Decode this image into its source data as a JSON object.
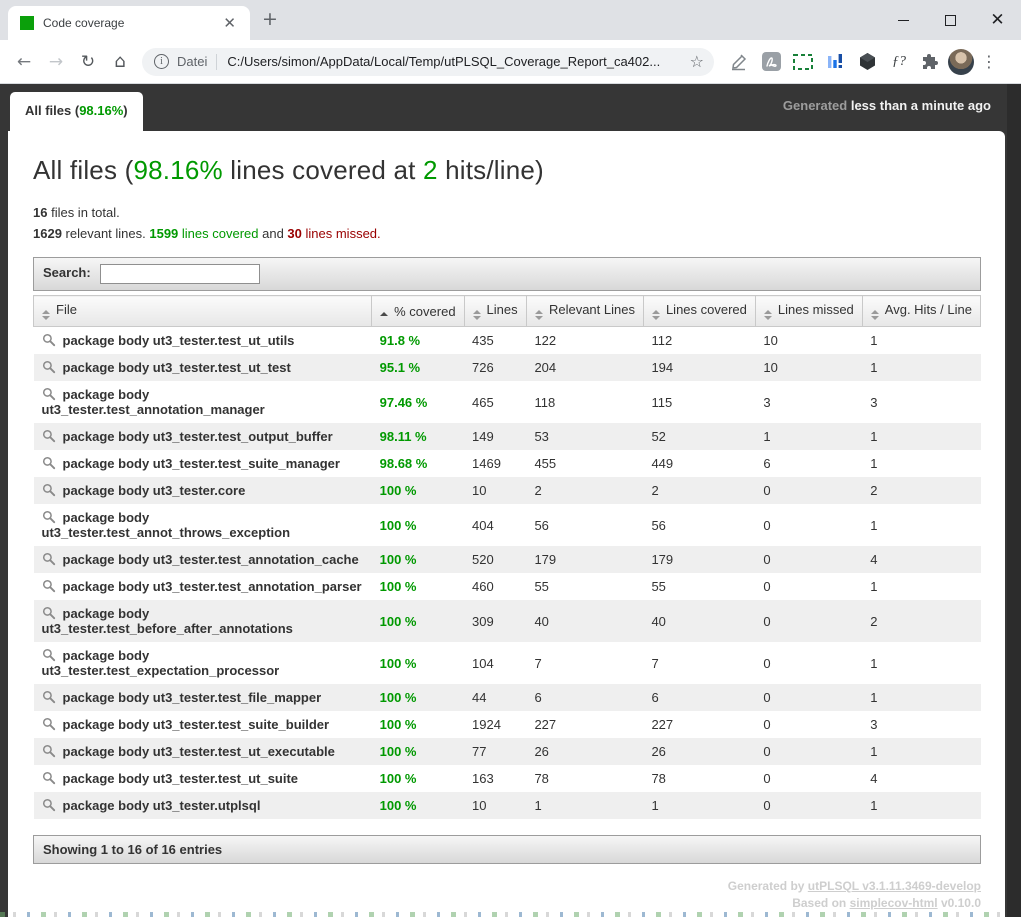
{
  "browser": {
    "tab": {
      "title": "Code coverage"
    },
    "toolbar": {
      "protocol_label": "Datei",
      "url": "C:/Users/simon/AppData/Local/Temp/utPLSQL_Coverage_Report_ca402..."
    }
  },
  "report": {
    "tab": {
      "prefix": "All files (",
      "percent": "98.16%",
      "suffix": ")"
    },
    "generated": {
      "label": "Generated",
      "time": "less than a minute ago"
    },
    "heading": {
      "pre": "All files (",
      "percent": "98.16%",
      "mid": " lines covered at ",
      "hits": "2",
      "post": " hits/line)"
    },
    "stats": {
      "files_count": "16",
      "files_label": " files in total.",
      "relevant_count": "1629",
      "relevant_label": " relevant lines. ",
      "covered_count": "1599",
      "covered_label": " lines covered",
      "conjunction": " and ",
      "missed_count": "30",
      "missed_label": " lines missed."
    },
    "search": {
      "label": "Search:"
    },
    "table": {
      "columns": [
        {
          "label": "File",
          "sort": "both"
        },
        {
          "label": "% covered",
          "sort": "asc"
        },
        {
          "label": "Lines",
          "sort": "both"
        },
        {
          "label": "Relevant Lines",
          "sort": "both"
        },
        {
          "label": "Lines covered",
          "sort": "both"
        },
        {
          "label": "Lines missed",
          "sort": "both"
        },
        {
          "label": "Avg. Hits / Line",
          "sort": "both"
        }
      ],
      "rows": [
        {
          "file": "package body ut3_tester.test_ut_utils",
          "covered": "91.8 %",
          "lines": "435",
          "relevant": "122",
          "lines_covered": "112",
          "lines_missed": "10",
          "avg_hits": "1"
        },
        {
          "file": "package body ut3_tester.test_ut_test",
          "covered": "95.1 %",
          "lines": "726",
          "relevant": "204",
          "lines_covered": "194",
          "lines_missed": "10",
          "avg_hits": "1"
        },
        {
          "file": "package body ut3_tester.test_annotation_manager",
          "covered": "97.46 %",
          "lines": "465",
          "relevant": "118",
          "lines_covered": "115",
          "lines_missed": "3",
          "avg_hits": "3"
        },
        {
          "file": "package body ut3_tester.test_output_buffer",
          "covered": "98.11 %",
          "lines": "149",
          "relevant": "53",
          "lines_covered": "52",
          "lines_missed": "1",
          "avg_hits": "1"
        },
        {
          "file": "package body ut3_tester.test_suite_manager",
          "covered": "98.68 %",
          "lines": "1469",
          "relevant": "455",
          "lines_covered": "449",
          "lines_missed": "6",
          "avg_hits": "1"
        },
        {
          "file": "package body ut3_tester.core",
          "covered": "100 %",
          "lines": "10",
          "relevant": "2",
          "lines_covered": "2",
          "lines_missed": "0",
          "avg_hits": "2"
        },
        {
          "file": "package body ut3_tester.test_annot_throws_exception",
          "covered": "100 %",
          "lines": "404",
          "relevant": "56",
          "lines_covered": "56",
          "lines_missed": "0",
          "avg_hits": "1"
        },
        {
          "file": "package body ut3_tester.test_annotation_cache",
          "covered": "100 %",
          "lines": "520",
          "relevant": "179",
          "lines_covered": "179",
          "lines_missed": "0",
          "avg_hits": "4"
        },
        {
          "file": "package body ut3_tester.test_annotation_parser",
          "covered": "100 %",
          "lines": "460",
          "relevant": "55",
          "lines_covered": "55",
          "lines_missed": "0",
          "avg_hits": "1"
        },
        {
          "file": "package body ut3_tester.test_before_after_annotations",
          "covered": "100 %",
          "lines": "309",
          "relevant": "40",
          "lines_covered": "40",
          "lines_missed": "0",
          "avg_hits": "2"
        },
        {
          "file": "package body ut3_tester.test_expectation_processor",
          "covered": "100 %",
          "lines": "104",
          "relevant": "7",
          "lines_covered": "7",
          "lines_missed": "0",
          "avg_hits": "1"
        },
        {
          "file": "package body ut3_tester.test_file_mapper",
          "covered": "100 %",
          "lines": "44",
          "relevant": "6",
          "lines_covered": "6",
          "lines_missed": "0",
          "avg_hits": "1"
        },
        {
          "file": "package body ut3_tester.test_suite_builder",
          "covered": "100 %",
          "lines": "1924",
          "relevant": "227",
          "lines_covered": "227",
          "lines_missed": "0",
          "avg_hits": "3"
        },
        {
          "file": "package body ut3_tester.test_ut_executable",
          "covered": "100 %",
          "lines": "77",
          "relevant": "26",
          "lines_covered": "26",
          "lines_missed": "0",
          "avg_hits": "1"
        },
        {
          "file": "package body ut3_tester.test_ut_suite",
          "covered": "100 %",
          "lines": "163",
          "relevant": "78",
          "lines_covered": "78",
          "lines_missed": "0",
          "avg_hits": "4"
        },
        {
          "file": "package body ut3_tester.utplsql",
          "covered": "100 %",
          "lines": "10",
          "relevant": "1",
          "lines_covered": "1",
          "lines_missed": "0",
          "avg_hits": "1"
        }
      ]
    },
    "showing": "Showing 1 to 16 of 16 entries",
    "credits": {
      "generated_by": "Generated by",
      "generator": "utPLSQL v3.1.11.3469-develop",
      "based_on": "Based on",
      "base": "simplecov-html",
      "version": "v0.10.0"
    }
  },
  "colors": {
    "green": "#009900",
    "red": "#990000",
    "page_dark": "#363636",
    "favicon_green": "#0ba00b"
  }
}
